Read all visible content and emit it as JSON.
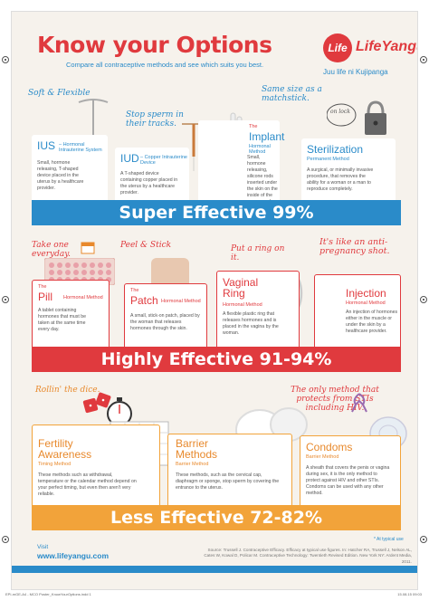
{
  "header": {
    "title": "Know your Options",
    "subtitle": "Compare all contraceptive methods and see which suits you best.",
    "logo_word": "LifeYangu",
    "logo_mark": "Life",
    "logo_tag": "Juu life ni Kujipanga"
  },
  "super": {
    "banner": "Super Effective 99%",
    "cards": [
      {
        "name": "IUS",
        "sub": " – Hormonal Intrauterine System",
        "desc": "Small, hormone releasing, T-shaped device placed in the uterus by a healthcare provider.",
        "tagline": "Soft & Flexible"
      },
      {
        "name": "IUD",
        "sub": " – Copper Intrauterine Device",
        "desc": "A T-shaped device containing copper placed in the uterus by a healthcare provider.",
        "tagline": "Stop sperm in their tracks."
      },
      {
        "the": "The",
        "name": "Implant",
        "sub": "Hormonal Method",
        "desc": "Small, hormone releasing, silicone rods inserted under the skin on the inside of the upper arm by a healthcare provider.",
        "tagline": "Same size as a matchstick."
      },
      {
        "name": "Sterilization",
        "sub": "Permanent Method",
        "desc": "A surgical, or minimally invasive procedure, that removes the ability for a woman or a man to reproduce completely.",
        "tagline": "on lock"
      }
    ]
  },
  "highly": {
    "banner": "Highly Effective 91-94%",
    "cards": [
      {
        "the": "The",
        "name": "Pill",
        "sub": "Hormonal Method",
        "desc": "A tablet containing hormones that must be taken at the same time every day.",
        "tagline": "Take one everyday."
      },
      {
        "the": "The",
        "name": "Patch",
        "sub": "Hormonal Method",
        "desc": "A small, stick-on patch, placed by the woman that releases hormones through the skin.",
        "tagline": "Peel & Stick"
      },
      {
        "name": "Vaginal Ring",
        "sub": "Hormonal Method",
        "desc": "A flexible plastic ring that releases hormones and is placed in the vagina by the woman.",
        "tagline": "Put a ring on it."
      },
      {
        "name": "Injection",
        "sub": "Hormonal Method",
        "desc": "An injection of hormones either in the muscle or under the skin by a healthcare provider.",
        "tagline": "It's like an anti-pregnancy shot."
      }
    ]
  },
  "less": {
    "banner": "Less Effective 72-82%",
    "cards": [
      {
        "name": "Fertility Awareness",
        "sub": "Timing Method",
        "desc": "These methods such as withdrawal, temperature or the calendar method depend on your perfect timing, but even then aren't very reliable.",
        "tagline": "Rollin' the dice."
      },
      {
        "name": "Barrier Methods",
        "sub": "Barrier Method",
        "desc": "These methods, such as the cervical cap, diaphragm or sponge, stop sperm by covering the entrance to the uterus."
      },
      {
        "name": "Condoms",
        "sub": "Barrier Method",
        "desc": "A sheath that covers the penis or vagina during sex, it is the only method to protect against HIV and other STIs. Condoms can be used with any other method.",
        "tagline": "The only method that protects from STIs including HIV."
      }
    ]
  },
  "footer": {
    "visit": "Visit",
    "url": "www.lifeyangu.com",
    "note": "* At typical use",
    "source": "Source: Trussell J. Contraceptive Efficacy. Efficacy at typical use figures. In: Hatcher RA, Trussell J, Nelson AL, Cates W, Kowal D, Policar M. Contraceptive Technology: Twentieth Revised Edition. New York NY: Ardent Media, 2011.",
    "print_left": "EPI-mGE-A4 - MCO Poster_KnowYourOptions.indd 1",
    "print_right": "15.08.15   09:03"
  },
  "colors": {
    "blue": "#2a8bc9",
    "red": "#e03a3e",
    "orange": "#f2a33a"
  }
}
